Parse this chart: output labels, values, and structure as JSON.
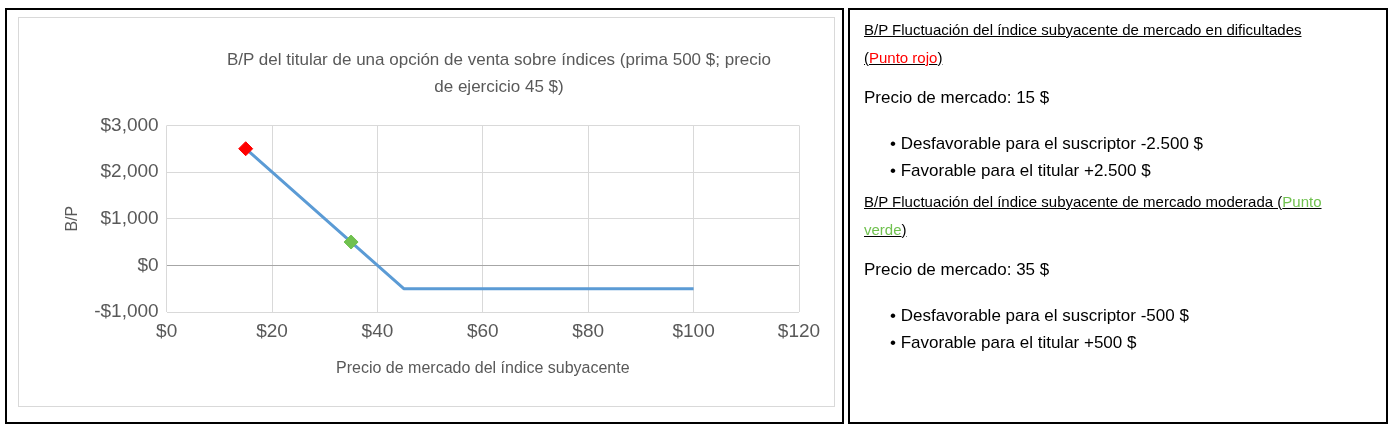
{
  "chart_data": [
    {
      "type": "line",
      "title": "B/P del titular de una opción de venta sobre índices (prima 500 $; precio de ejercicio 45 $)",
      "xlabel": "Precio de mercado del índice subyacente",
      "ylabel": "B/P",
      "series": [
        {
          "type": "line",
          "color": "#5b9bd5",
          "x": [
            15,
            45,
            100
          ],
          "values": [
            2500,
            -500,
            -500
          ],
          "marker": "none"
        },
        {
          "type": "scatter",
          "color": "#ff0000",
          "x": [
            15
          ],
          "values": [
            2500
          ],
          "marker": "diamond"
        },
        {
          "type": "scatter",
          "color": "#70c14f",
          "x": [
            35
          ],
          "values": [
            500
          ],
          "marker": "diamond"
        }
      ],
      "xlim": [
        0,
        120
      ],
      "xticks": [
        {
          "value": 0,
          "label": "$0"
        },
        {
          "value": 20,
          "label": "$20"
        },
        {
          "value": 40,
          "label": "$40"
        },
        {
          "value": 60,
          "label": "$60"
        },
        {
          "value": 80,
          "label": "$80"
        },
        {
          "value": 100,
          "label": "$100"
        },
        {
          "value": 120,
          "label": "$120"
        }
      ],
      "ylim": [
        -1000,
        3000
      ],
      "yticks": [
        {
          "value": -1000,
          "label": "-$1,000"
        },
        {
          "value": 0,
          "label": "$0"
        },
        {
          "value": 1000,
          "label": "$1,000"
        },
        {
          "value": 2000,
          "label": "$2,000"
        },
        {
          "value": 3000,
          "label": "$3,000"
        }
      ],
      "grid": true,
      "legend": false
    },
    {
      "type": "other",
      "annotations": [
        "B/P Fluctuación del índice subyacente de mercado en dificultades (Punto rojo)",
        "Precio de mercado: 15 $",
        "• Desfavorable para el suscriptor -2.500 $",
        "• Favorable para el titular +2.500 $",
        "B/P Fluctuación del índice subyacente de mercado moderada (Punto verde)",
        "Precio de mercado: 35 $",
        "• Desfavorable para el suscriptor -500 $",
        "• Favorable para el titular +500 $"
      ]
    }
  ]
}
